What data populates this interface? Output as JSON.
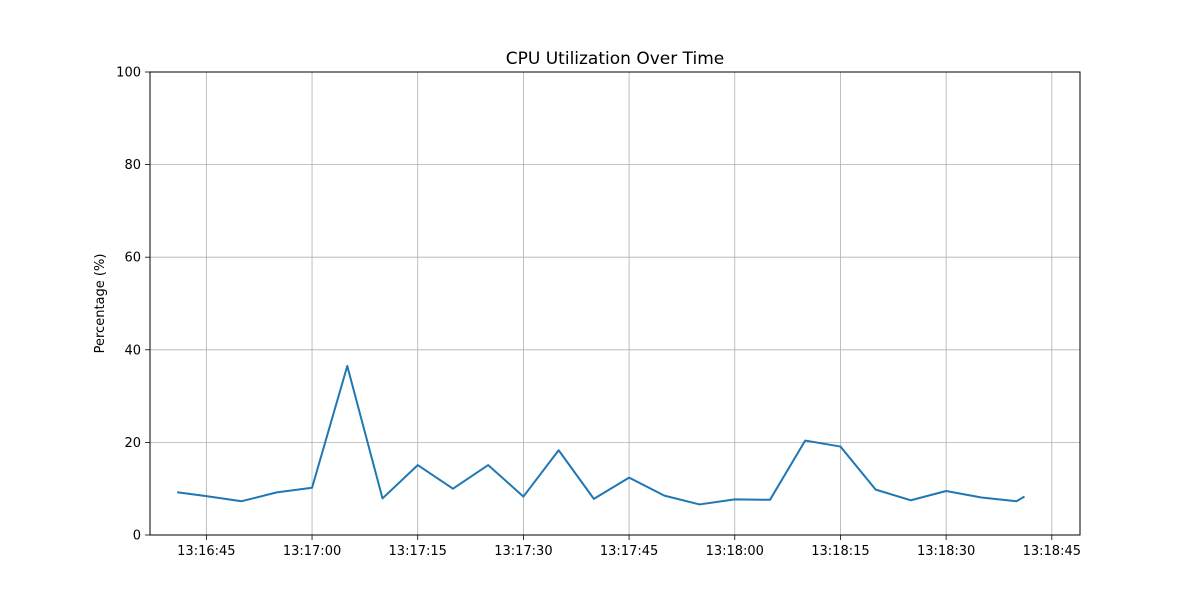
{
  "chart_data": {
    "type": "line",
    "title": "CPU Utilization Over Time",
    "xlabel": "",
    "ylabel": "Percentage (%)",
    "ylim": [
      0,
      100
    ],
    "xlim": [
      "13:16:37",
      "13:18:49"
    ],
    "grid": true,
    "x_ticks": [
      "13:16:45",
      "13:17:00",
      "13:17:15",
      "13:17:30",
      "13:17:45",
      "13:18:00",
      "13:18:15",
      "13:18:30",
      "13:18:45"
    ],
    "y_ticks": [
      0,
      20,
      40,
      60,
      80,
      100
    ],
    "series": [
      {
        "color": "#1f77b4",
        "x": [
          "13:16:41",
          "13:16:45",
          "13:16:50",
          "13:16:55",
          "13:17:00",
          "13:17:05",
          "13:17:10",
          "13:17:15",
          "13:17:20",
          "13:17:25",
          "13:17:30",
          "13:17:35",
          "13:17:40",
          "13:17:45",
          "13:17:50",
          "13:17:55",
          "13:18:00",
          "13:18:05",
          "13:18:10",
          "13:18:15",
          "13:18:20",
          "13:18:25",
          "13:18:30",
          "13:18:35",
          "13:18:40",
          "13:18:41"
        ],
        "values": [
          9.2,
          8.4,
          7.3,
          9.2,
          10.2,
          36.5,
          7.9,
          15.1,
          10.0,
          15.1,
          8.3,
          18.3,
          7.8,
          12.4,
          8.5,
          6.6,
          7.7,
          7.6,
          20.4,
          19.1,
          9.8,
          7.5,
          9.5,
          8.1,
          7.3,
          8.2
        ]
      }
    ]
  }
}
